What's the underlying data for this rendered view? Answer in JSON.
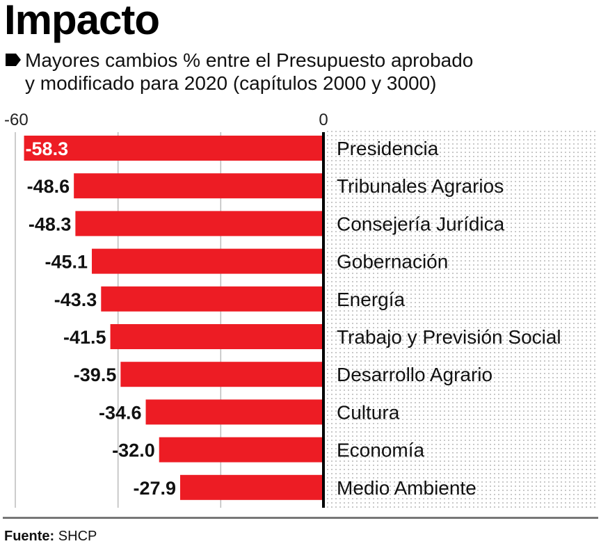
{
  "header": {
    "title": "Impacto",
    "subtitle_line1": "Mayores cambios % entre el Presupuesto aprobado",
    "subtitle_line2": "y modificado para 2020 (capítulos 2000 y 3000)",
    "bullet_icon": "pentagon-bullet-icon"
  },
  "footer": {
    "source_label": "Fuente:",
    "source_value": "SHCP"
  },
  "colors": {
    "bar": "#ED1C24",
    "axis": "#000000",
    "grid": "#bbbbbb",
    "dots": "#c8c8c8"
  },
  "chart_data": {
    "type": "bar",
    "orientation": "horizontal",
    "title": "Mayores cambios % entre el Presupuesto aprobado y modificado para 2020 (capítulos 2000 y 3000)",
    "xlabel": "",
    "ylabel": "",
    "xlim": [
      -60,
      0
    ],
    "x_ticks": [
      -60,
      -40,
      -20,
      0
    ],
    "x_tick_labels": [
      "-60",
      "0"
    ],
    "grid": true,
    "categories": [
      "Presidencia",
      "Tribunales Agrarios",
      "Consejería Jurídica",
      "Gobernación",
      "Energía",
      "Trabajo y Previsión Social",
      "Desarrollo Agrario",
      "Cultura",
      "Economía",
      "Medio Ambiente"
    ],
    "values": [
      -58.3,
      -48.6,
      -48.3,
      -45.1,
      -43.3,
      -41.5,
      -39.5,
      -34.6,
      -32.0,
      -27.9
    ],
    "value_labels": [
      "-58.3",
      "-48.6",
      "-48.3",
      "-45.1",
      "-43.3",
      "-41.5",
      "-39.5",
      "-34.6",
      "-32.0",
      "-27.9"
    ]
  }
}
